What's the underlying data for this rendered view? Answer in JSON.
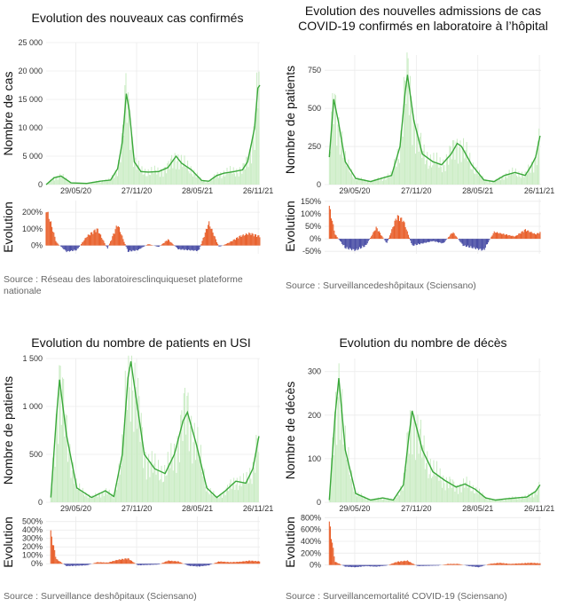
{
  "colors": {
    "line": "#3aa83a",
    "bar": "#c9ecc3",
    "positive": "#e8602c",
    "negative": "#4b4fa6",
    "grid": "#ebebeb"
  },
  "panels": [
    {
      "title": "Evolution des nouveaux cas confirmés",
      "ylabel_main": "Nombre de cas",
      "ylabel_evo": "Evolution",
      "source": "Source : Réseau des laboratoiresclinquiqueset plateforme nationale",
      "yticks_main": [
        "25 000",
        "20 000",
        "15 000",
        "10 000",
        "5 000",
        "0"
      ],
      "yticks_evo": [
        "200%",
        "100%",
        "0%"
      ],
      "xticks": [
        "29/05/20",
        "27/11/20",
        "28/05/21",
        "26/11/21"
      ]
    },
    {
      "title": "Evolution des nouvelles admissions de cas COVID-19 confirmés en laboratoire à l'hôpital",
      "title_line1": "Evolution des nouvelles admissions de cas",
      "title_line2": "COVID-19 confirmés en laboratoire à l’hôpital",
      "ylabel_main": "Nombre de patients",
      "ylabel_evo": "Evolution",
      "source": "Source : Surveillancedeshôpitaux (Sciensano)",
      "yticks_main": [
        "750",
        "500",
        "250",
        "0"
      ],
      "yticks_evo": [
        "150%",
        "100%",
        "50%",
        "0%",
        "-50%"
      ],
      "xticks": [
        "29/05/20",
        "27/11/20",
        "28/05/21",
        "26/11/21"
      ]
    },
    {
      "title": "Evolution du nombre de patients en USI",
      "ylabel_main": "Nombre de patients",
      "ylabel_evo": "Evolution",
      "source": "Source : Surveillance deshôpitaux (Sciensano)",
      "yticks_main": [
        "1 500",
        "1 000",
        "500",
        "0"
      ],
      "yticks_evo": [
        "500%",
        "400%",
        "300%",
        "200%",
        "100%",
        "0%"
      ],
      "xticks": [
        "29/05/20",
        "27/11/20",
        "28/05/21",
        "26/11/21"
      ]
    },
    {
      "title": "Evolution du nombre de décès",
      "ylabel_main": "Nombre de décès",
      "ylabel_evo": "Evolution",
      "source": "Source : Surveillancemortalité COVID-19 (Sciensano)",
      "yticks_main": [
        "300",
        "200",
        "100",
        "0"
      ],
      "yticks_evo": [
        "800%",
        "600%",
        "400%",
        "200%",
        "0%"
      ],
      "xticks": [
        "29/05/20",
        "27/11/20",
        "28/05/21",
        "26/11/21"
      ]
    }
  ],
  "chart_data": [
    {
      "type": "line",
      "title": "Evolution des nouveaux cas confirmés",
      "ylabel": "Nombre de cas",
      "xlabel": "",
      "x_range": [
        "2020-03-01",
        "2021-12-01"
      ],
      "ylim": [
        0,
        25000
      ],
      "series": [
        {
          "x": [
            "2020-03-01",
            "2020-03-25",
            "2020-04-15",
            "2020-05-15",
            "2020-07-01",
            "2020-08-10",
            "2020-09-10",
            "2020-10-01",
            "2020-10-15",
            "2020-10-27",
            "2020-11-05",
            "2020-11-20",
            "2020-12-10",
            "2021-01-01",
            "2021-02-01",
            "2021-03-01",
            "2021-03-25",
            "2021-04-10",
            "2021-05-10",
            "2021-06-10",
            "2021-07-01",
            "2021-07-25",
            "2021-08-15",
            "2021-09-15",
            "2021-10-10",
            "2021-10-25",
            "2021-11-05",
            "2021-11-15",
            "2021-11-25",
            "2021-12-01"
          ],
          "y": [
            0,
            1200,
            1500,
            300,
            200,
            600,
            800,
            2800,
            7500,
            16000,
            13000,
            4000,
            2300,
            2200,
            2300,
            3000,
            5000,
            3800,
            2600,
            700,
            600,
            1600,
            2000,
            2300,
            2600,
            4000,
            7000,
            10000,
            17000,
            17500
          ]
        }
      ],
      "evolution": {
        "ylim": [
          -50,
          270
        ],
        "x": [
          "2020-03-01",
          "2020-03-15",
          "2020-04-01",
          "2020-05-01",
          "2020-06-01",
          "2020-07-01",
          "2020-08-01",
          "2020-09-01",
          "2020-10-01",
          "2020-11-01",
          "2020-12-01",
          "2021-01-01",
          "2021-02-01",
          "2021-03-01",
          "2021-04-01",
          "2021-05-01",
          "2021-06-01",
          "2021-07-01",
          "2021-08-01",
          "2021-09-01",
          "2021-10-01",
          "2021-11-01",
          "2021-12-01"
        ],
        "y": [
          240,
          150,
          20,
          -40,
          -30,
          60,
          110,
          -20,
          140,
          -40,
          -30,
          10,
          -10,
          40,
          -25,
          -30,
          -35,
          150,
          -10,
          20,
          60,
          80,
          60
        ]
      }
    },
    {
      "type": "line",
      "title": "Evolution des nouvelles admissions de cas COVID-19 confirmés en laboratoire à l'hôpital",
      "ylabel": "Nombre de patients",
      "xlabel": "",
      "x_range": [
        "2020-03-01",
        "2021-12-01"
      ],
      "ylim": [
        0,
        850
      ],
      "series": [
        {
          "x": [
            "2020-03-15",
            "2020-03-28",
            "2020-04-10",
            "2020-05-01",
            "2020-06-01",
            "2020-07-15",
            "2020-08-15",
            "2020-09-15",
            "2020-10-10",
            "2020-10-25",
            "2020-11-01",
            "2020-11-20",
            "2020-12-15",
            "2021-01-15",
            "2021-02-10",
            "2021-03-10",
            "2021-03-28",
            "2021-04-10",
            "2021-05-10",
            "2021-06-15",
            "2021-07-15",
            "2021-08-15",
            "2021-09-15",
            "2021-10-15",
            "2021-11-01",
            "2021-11-15",
            "2021-11-28"
          ],
          "y": [
            180,
            560,
            420,
            150,
            40,
            20,
            40,
            60,
            250,
            600,
            720,
            420,
            200,
            150,
            130,
            200,
            270,
            250,
            130,
            30,
            20,
            60,
            80,
            60,
            120,
            180,
            320
          ]
        }
      ],
      "evolution": {
        "ylim": [
          -60,
          160
        ],
        "x": [
          "2020-03-15",
          "2020-04-01",
          "2020-05-01",
          "2020-06-01",
          "2020-07-01",
          "2020-08-01",
          "2020-09-01",
          "2020-10-01",
          "2020-10-20",
          "2020-11-15",
          "2020-12-15",
          "2021-01-15",
          "2021-02-15",
          "2021-03-15",
          "2021-04-15",
          "2021-05-15",
          "2021-06-15",
          "2021-07-15",
          "2021-08-15",
          "2021-09-15",
          "2021-10-15",
          "2021-11-15",
          "2021-12-01"
        ],
        "y": [
          140,
          20,
          -40,
          -50,
          -30,
          50,
          -20,
          100,
          80,
          -30,
          -20,
          -10,
          -20,
          30,
          -30,
          -40,
          -50,
          30,
          20,
          10,
          40,
          20,
          30
        ]
      }
    },
    {
      "type": "line",
      "title": "Evolution du nombre de patients en USI",
      "ylabel": "Nombre de patients",
      "xlabel": "",
      "x_range": [
        "2020-03-01",
        "2021-12-01"
      ],
      "ylim": [
        0,
        1500
      ],
      "series": [
        {
          "x": [
            "2020-03-15",
            "2020-04-01",
            "2020-04-10",
            "2020-05-01",
            "2020-06-01",
            "2020-07-15",
            "2020-08-25",
            "2020-09-20",
            "2020-10-15",
            "2020-11-01",
            "2020-11-10",
            "2020-11-25",
            "2020-12-20",
            "2021-01-20",
            "2021-02-20",
            "2021-03-20",
            "2021-04-15",
            "2021-04-28",
            "2021-05-25",
            "2021-06-25",
            "2021-07-25",
            "2021-08-20",
            "2021-09-20",
            "2021-10-20",
            "2021-11-10",
            "2021-11-28"
          ],
          "y": [
            50,
            900,
            1280,
            700,
            150,
            50,
            120,
            60,
            500,
            1300,
            1470,
            1100,
            500,
            350,
            300,
            500,
            850,
            940,
            600,
            150,
            50,
            120,
            220,
            200,
            350,
            690
          ]
        }
      ],
      "evolution": {
        "ylim": [
          -50,
          560
        ],
        "x": [
          "2020-03-15",
          "2020-04-01",
          "2020-05-01",
          "2020-06-01",
          "2020-07-01",
          "2020-08-01",
          "2020-09-01",
          "2020-10-01",
          "2020-11-01",
          "2020-12-01",
          "2021-01-01",
          "2021-02-01",
          "2021-03-01",
          "2021-04-01",
          "2021-05-01",
          "2021-06-01",
          "2021-07-01",
          "2021-08-01",
          "2021-09-01",
          "2021-10-01",
          "2021-11-01",
          "2021-12-01"
        ],
        "y": [
          400,
          60,
          -30,
          -25,
          -20,
          20,
          15,
          50,
          70,
          -20,
          -15,
          -10,
          40,
          30,
          -25,
          -35,
          -20,
          30,
          20,
          25,
          40,
          30
        ]
      }
    },
    {
      "type": "line",
      "title": "Evolution du nombre de décès",
      "ylabel": "Nombre de décès",
      "xlabel": "",
      "x_range": [
        "2020-03-01",
        "2021-12-01"
      ],
      "ylim": [
        0,
        330
      ],
      "series": [
        {
          "x": [
            "2020-03-15",
            "2020-04-01",
            "2020-04-12",
            "2020-05-01",
            "2020-06-01",
            "2020-07-15",
            "2020-08-20",
            "2020-09-20",
            "2020-10-20",
            "2020-11-05",
            "2020-11-15",
            "2020-12-15",
            "2021-01-15",
            "2021-02-20",
            "2021-03-25",
            "2021-04-20",
            "2021-05-20",
            "2021-06-20",
            "2021-07-20",
            "2021-08-20",
            "2021-09-20",
            "2021-10-20",
            "2021-11-15",
            "2021-11-28"
          ],
          "y": [
            5,
            200,
            285,
            120,
            20,
            5,
            10,
            5,
            40,
            150,
            210,
            120,
            70,
            50,
            35,
            42,
            30,
            10,
            5,
            8,
            10,
            12,
            25,
            40
          ]
        }
      ],
      "evolution": {
        "ylim": [
          -50,
          820
        ],
        "x": [
          "2020-03-15",
          "2020-04-01",
          "2020-05-01",
          "2020-06-01",
          "2020-07-01",
          "2020-08-01",
          "2020-09-01",
          "2020-10-01",
          "2020-11-01",
          "2020-12-01",
          "2021-01-01",
          "2021-02-01",
          "2021-03-01",
          "2021-04-01",
          "2021-05-01",
          "2021-06-01",
          "2021-07-01",
          "2021-08-01",
          "2021-09-01",
          "2021-10-01",
          "2021-11-01",
          "2021-12-01"
        ],
        "y": [
          780,
          60,
          -30,
          -40,
          -20,
          -30,
          -10,
          60,
          80,
          -20,
          -15,
          -10,
          20,
          20,
          -20,
          -40,
          20,
          40,
          20,
          30,
          40,
          30
        ]
      }
    }
  ]
}
